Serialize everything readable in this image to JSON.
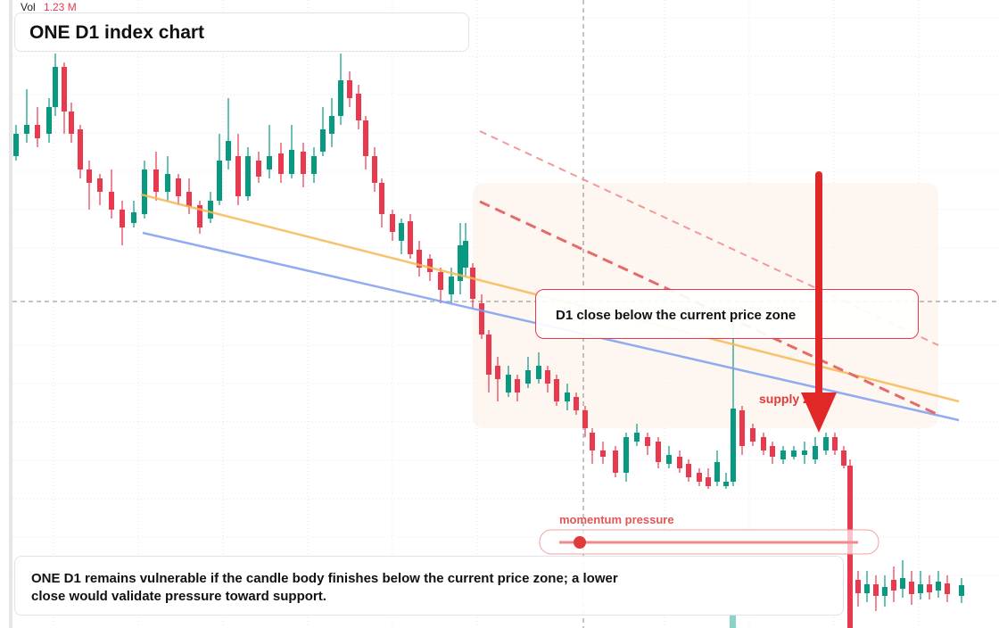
{
  "header": {
    "volume_label": "Vol",
    "volume_value": "1.23 M",
    "title": "ONE D1 index chart"
  },
  "annotations": {
    "callout": "D1 close below the current price zone",
    "zone_label": "supply zone",
    "momentum_label": "momentum pressure",
    "summary": "ONE D1 remains vulnerable if the candle body finishes below the current price zone; a lower close would validate pressure toward support."
  }
}
